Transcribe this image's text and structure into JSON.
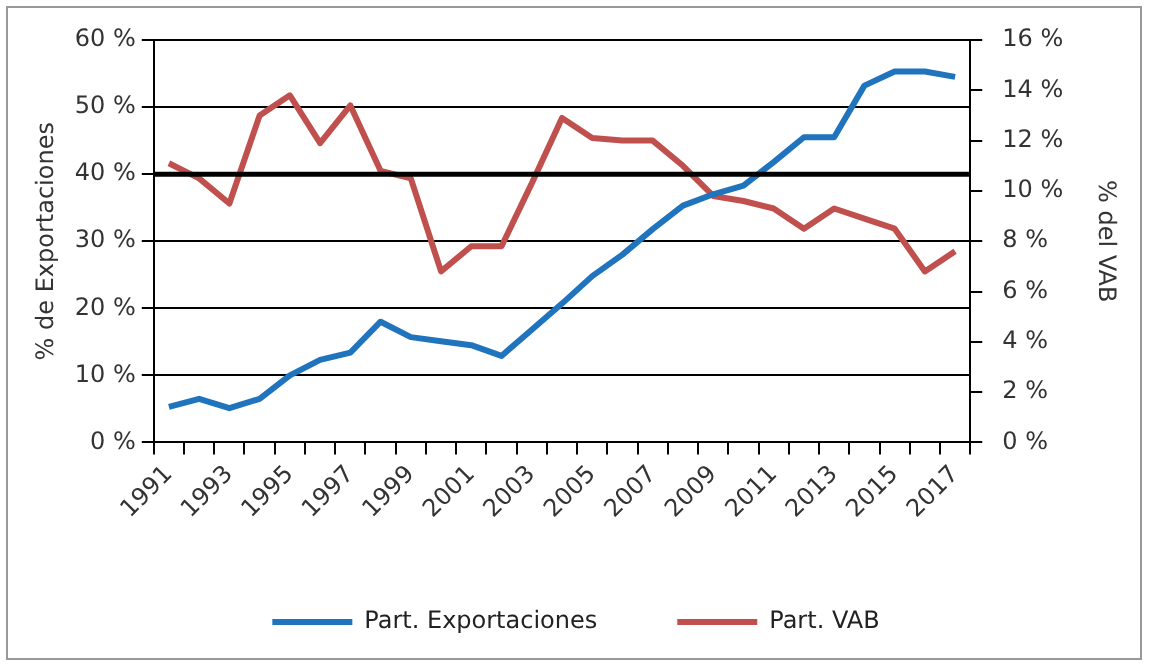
{
  "chart_data": {
    "type": "line",
    "categories": [
      "1991",
      null,
      "1993",
      null,
      "1995",
      null,
      "1997",
      null,
      "1999",
      null,
      "2001",
      null,
      "2003",
      null,
      "2005",
      null,
      "2007",
      null,
      "2009",
      null,
      "2011",
      null,
      "2013",
      null,
      "2015",
      null,
      "2017"
    ],
    "series": [
      {
        "name": "Part. Exportaciones",
        "color": "#1f74bd",
        "values": [
          5.3,
          6.5,
          5.1,
          6.5,
          10.0,
          12.3,
          13.4,
          18.0,
          15.7,
          15.1,
          14.5,
          12.9,
          16.8,
          20.7,
          24.8,
          28.0,
          31.8,
          35.3,
          37.0,
          38.3,
          41.8,
          45.5,
          45.5,
          53.2,
          55.3,
          55.3,
          54.5
        ]
      },
      {
        "name": "Part. VAB",
        "color": "#c0504d",
        "axis": "y2",
        "values": [
          11.1,
          10.5,
          9.5,
          13.0,
          13.8,
          11.9,
          13.4,
          10.8,
          10.5,
          6.8,
          7.8,
          7.8,
          10.3,
          12.9,
          12.1,
          12.0,
          12.0,
          11.0,
          9.8,
          9.6,
          9.3,
          8.5,
          9.3,
          8.9,
          8.5,
          6.8,
          7.6
        ]
      }
    ],
    "ylabel": "% de Exportaciones",
    "y2label": "% del VAB",
    "ylim": [
      0,
      60
    ],
    "yticks": [
      {
        "value": 0,
        "label": "0 %"
      },
      {
        "value": 10,
        "label": "10 %"
      },
      {
        "value": 20,
        "label": "20 %"
      },
      {
        "value": 30,
        "label": "30 %"
      },
      {
        "value": 40,
        "label": "40 %"
      },
      {
        "value": 50,
        "label": "50 %"
      },
      {
        "value": 60,
        "label": "60 %"
      }
    ],
    "y2lim": [
      0,
      16
    ],
    "y2ticks": [
      {
        "value": 0,
        "label": "0 %"
      },
      {
        "value": 2,
        "label": "2 %"
      },
      {
        "value": 4,
        "label": "4 %"
      },
      {
        "value": 6,
        "label": "6 %"
      },
      {
        "value": 8,
        "label": "8 %"
      },
      {
        "value": 10,
        "label": "10 %"
      },
      {
        "value": 12,
        "label": "12 %"
      },
      {
        "value": 14,
        "label": "14 %"
      },
      {
        "value": 16,
        "label": "16 %"
      }
    ],
    "ref_lines": [
      {
        "axis": "y",
        "value": 40,
        "color": "#000000"
      }
    ],
    "grid": "y",
    "legend": "bottom",
    "marker": "none",
    "line_style": "solid"
  }
}
